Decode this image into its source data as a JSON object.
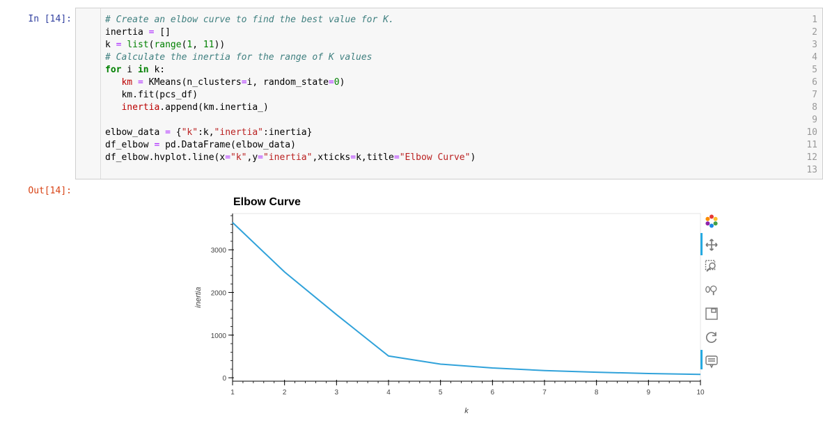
{
  "input_prompt": "In [14]:",
  "output_prompt": "Out[14]:",
  "code": {
    "line_numbers": [
      "1",
      "2",
      "3",
      "4",
      "5",
      "6",
      "7",
      "8",
      "9",
      "10",
      "11",
      "12",
      "13"
    ]
  },
  "chart_data": {
    "type": "line",
    "title": "Elbow Curve",
    "xlabel": "k",
    "ylabel": "inertia",
    "x": [
      1,
      2,
      3,
      4,
      5,
      6,
      7,
      8,
      9,
      10
    ],
    "values": [
      3640,
      2480,
      1480,
      510,
      320,
      230,
      170,
      130,
      100,
      80
    ],
    "xticks": [
      "1",
      "2",
      "3",
      "4",
      "5",
      "6",
      "7",
      "8",
      "9",
      "10"
    ],
    "yticks": [
      "0",
      "1000",
      "2000",
      "3000"
    ],
    "xlim": [
      1,
      10
    ],
    "ylim": [
      -80,
      3850
    ],
    "grid": false,
    "line_color": "#30a2da"
  },
  "toolbar": {
    "tools": [
      "bokeh-logo-icon",
      "pan-tool-icon",
      "box-zoom-tool-icon",
      "wheel-zoom-tool-icon",
      "save-tool-icon",
      "reset-tool-icon",
      "hover-tool-icon"
    ]
  }
}
